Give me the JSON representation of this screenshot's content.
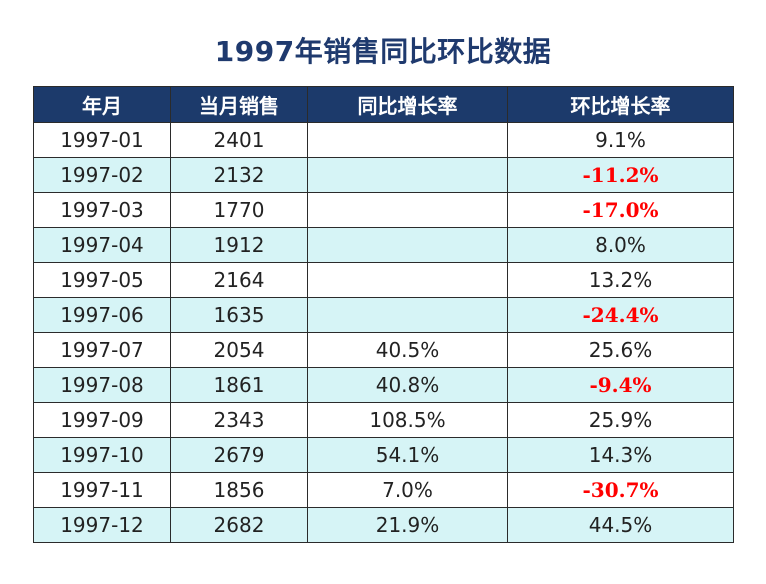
{
  "chart_data": {
    "type": "table",
    "title": "1997年销售同比环比数据",
    "columns": [
      "年月",
      "当月销售",
      "同比增长率",
      "环比增长率"
    ],
    "rows": [
      {
        "month": "1997-01",
        "sales": "2401",
        "yoy": "",
        "mom": "9.1%"
      },
      {
        "month": "1997-02",
        "sales": "2132",
        "yoy": "",
        "mom": "-11.2%"
      },
      {
        "month": "1997-03",
        "sales": "1770",
        "yoy": "",
        "mom": "-17.0%"
      },
      {
        "month": "1997-04",
        "sales": "1912",
        "yoy": "",
        "mom": "8.0%"
      },
      {
        "month": "1997-05",
        "sales": "2164",
        "yoy": "",
        "mom": "13.2%"
      },
      {
        "month": "1997-06",
        "sales": "1635",
        "yoy": "",
        "mom": "-24.4%"
      },
      {
        "month": "1997-07",
        "sales": "2054",
        "yoy": "40.5%",
        "mom": "25.6%"
      },
      {
        "month": "1997-08",
        "sales": "1861",
        "yoy": "40.8%",
        "mom": "-9.4%"
      },
      {
        "month": "1997-09",
        "sales": "2343",
        "yoy": "108.5%",
        "mom": "25.9%"
      },
      {
        "month": "1997-10",
        "sales": "2679",
        "yoy": "54.1%",
        "mom": "14.3%"
      },
      {
        "month": "1997-11",
        "sales": "1856",
        "yoy": "7.0%",
        "mom": "-30.7%"
      },
      {
        "month": "1997-12",
        "sales": "2682",
        "yoy": "21.9%",
        "mom": "44.5%"
      }
    ]
  },
  "colors": {
    "header_bg": "#1c3a6b",
    "header_text": "#ffffff",
    "stripe_bg": "#d6f4f6",
    "negative_text": "#ff0000",
    "title_text": "#1f3a6e"
  }
}
